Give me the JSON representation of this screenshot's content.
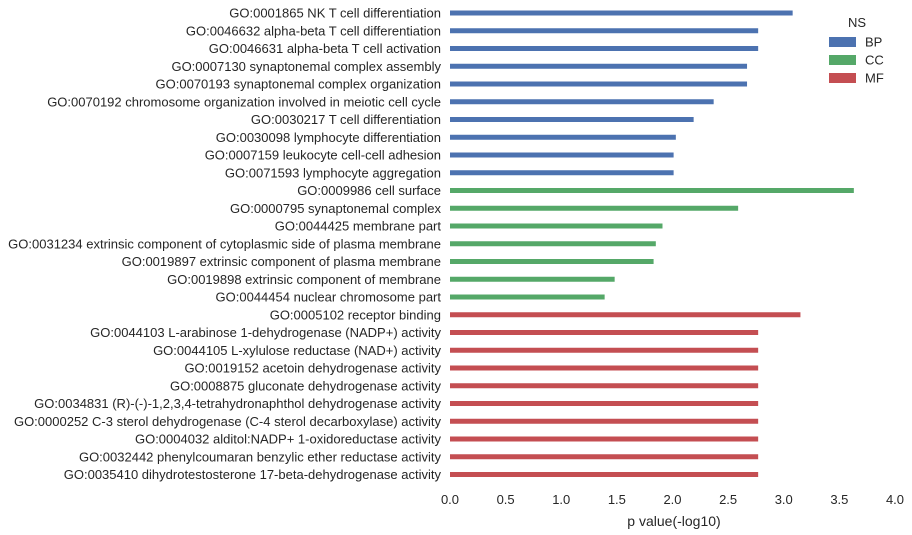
{
  "chart_data": {
    "type": "bar",
    "orientation": "horizontal",
    "xlabel": "p value(-log10)",
    "xlim": [
      0.0,
      4.0
    ],
    "xticks": [
      "0.0",
      "0.5",
      "1.0",
      "1.5",
      "2.0",
      "2.5",
      "3.0",
      "3.5",
      "4.0"
    ],
    "grid": false,
    "legend": {
      "title": "NS",
      "placement": "top-right",
      "entries": [
        {
          "name": "BP",
          "color": "#4c72b0"
        },
        {
          "name": "CC",
          "color": "#55a868"
        },
        {
          "name": "MF",
          "color": "#c44e52"
        }
      ]
    },
    "categories": [
      "GO:0001865 NK T cell differentiation",
      "GO:0046632 alpha-beta T cell differentiation",
      "GO:0046631 alpha-beta T cell activation",
      "GO:0007130 synaptonemal complex assembly",
      "GO:0070193 synaptonemal complex organization",
      "GO:0070192 chromosome organization involved in meiotic cell cycle",
      "GO:0030217 T cell differentiation",
      "GO:0030098 lymphocyte differentiation",
      "GO:0007159 leukocyte cell-cell adhesion",
      "GO:0071593 lymphocyte aggregation",
      "GO:0009986 cell surface",
      "GO:0000795 synaptonemal complex",
      "GO:0044425 membrane part",
      "GO:0031234 extrinsic component of cytoplasmic side of plasma membrane",
      "GO:0019897 extrinsic component of plasma membrane",
      "GO:0019898 extrinsic component of membrane",
      "GO:0044454 nuclear chromosome part",
      "GO:0005102 receptor binding",
      "GO:0044103 L-arabinose 1-dehydrogenase (NADP+) activity",
      "GO:0044105 L-xylulose reductase (NAD+) activity",
      "GO:0019152 acetoin dehydrogenase activity",
      "GO:0008875 gluconate dehydrogenase activity",
      "GO:0034831 (R)-(-)-1,2,3,4-tetrahydronaphthol dehydrogenase activity",
      "GO:0000252 C-3 sterol dehydrogenase (C-4 sterol decarboxylase) activity",
      "GO:0004032 alditol:NADP+ 1-oxidoreductase activity",
      "GO:0032442 phenylcoumaran benzylic ether reductase activity",
      "GO:0035410 dihydrotestosterone 17-beta-dehydrogenase activity"
    ],
    "values": [
      3.08,
      2.77,
      2.77,
      2.67,
      2.67,
      2.37,
      2.19,
      2.03,
      2.01,
      2.01,
      3.63,
      2.59,
      1.91,
      1.85,
      1.83,
      1.48,
      1.39,
      3.15,
      2.77,
      2.77,
      2.77,
      2.77,
      2.77,
      2.77,
      2.77,
      2.77,
      2.77
    ],
    "groups": [
      "BP",
      "BP",
      "BP",
      "BP",
      "BP",
      "BP",
      "BP",
      "BP",
      "BP",
      "BP",
      "CC",
      "CC",
      "CC",
      "CC",
      "CC",
      "CC",
      "CC",
      "MF",
      "MF",
      "MF",
      "MF",
      "MF",
      "MF",
      "MF",
      "MF",
      "MF",
      "MF"
    ]
  }
}
